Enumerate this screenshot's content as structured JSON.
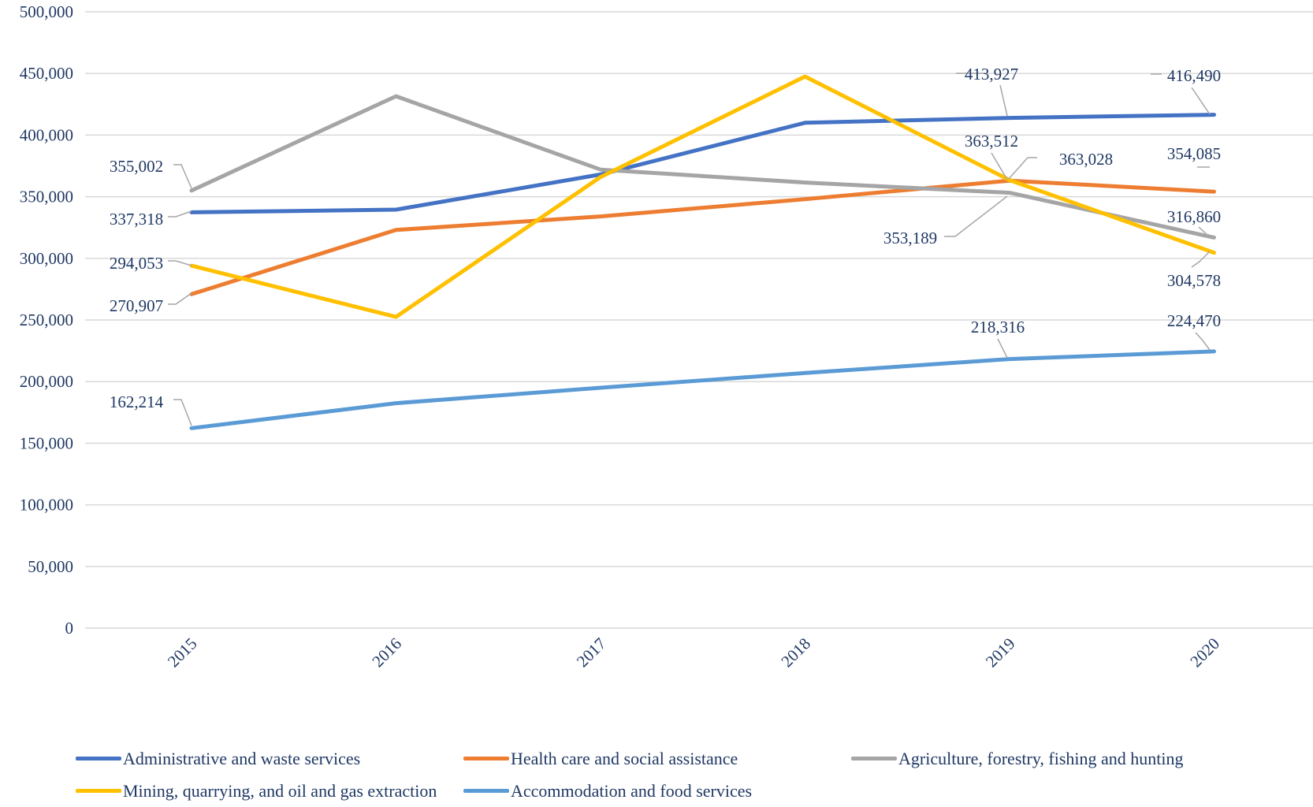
{
  "chart_data": {
    "type": "line",
    "title": "",
    "xlabel": "",
    "ylabel": "",
    "categories": [
      "2015",
      "2016",
      "2017",
      "2018",
      "2019",
      "2020"
    ],
    "ylim": [
      0,
      500000
    ],
    "yticks": [
      0,
      50000,
      100000,
      150000,
      200000,
      250000,
      300000,
      350000,
      400000,
      450000,
      500000
    ],
    "ytick_labels": [
      "0",
      "50,000",
      "100,000",
      "150,000",
      "200,000",
      "250,000",
      "300,000",
      "350,000",
      "400,000",
      "450,000",
      "500,000"
    ],
    "grid": true,
    "legend_position": "bottom",
    "series": [
      {
        "name": "Administrative and waste services",
        "color": "#4472C4",
        "values": [
          337318,
          339500,
          368000,
          410000,
          413927,
          416490
        ],
        "labels": [
          {
            "index": 0,
            "text": "337,318"
          },
          {
            "index": 4,
            "text": "413,927"
          },
          {
            "index": 5,
            "text": "416,490"
          }
        ]
      },
      {
        "name": "Health care and social assistance",
        "color": "#ED7D31",
        "values": [
          270907,
          323000,
          334000,
          348000,
          363028,
          354085
        ],
        "labels": [
          {
            "index": 0,
            "text": "270,907"
          },
          {
            "index": 4,
            "text": "363,028"
          },
          {
            "index": 5,
            "text": "354,085"
          }
        ]
      },
      {
        "name": "Agriculture, forestry, fishing and hunting",
        "color": "#A5A5A5",
        "values": [
          355002,
          431500,
          372000,
          361500,
          353189,
          316860
        ],
        "labels": [
          {
            "index": 0,
            "text": "355,002"
          },
          {
            "index": 4,
            "text": "353,189"
          },
          {
            "index": 5,
            "text": "316,860"
          }
        ]
      },
      {
        "name": "Mining, quarrying, and oil and gas extraction",
        "color": "#FFC000",
        "values": [
          294053,
          252500,
          366000,
          447500,
          363512,
          304578
        ],
        "labels": [
          {
            "index": 0,
            "text": "294,053"
          },
          {
            "index": 4,
            "text": "363,512"
          },
          {
            "index": 5,
            "text": "304,578"
          }
        ]
      },
      {
        "name": "Accommodation and food services",
        "color": "#5B9BD5",
        "values": [
          162214,
          182500,
          195000,
          207000,
          218316,
          224470
        ],
        "labels": [
          {
            "index": 0,
            "text": "162,214"
          },
          {
            "index": 4,
            "text": "218,316"
          },
          {
            "index": 5,
            "text": "224,470"
          }
        ]
      }
    ]
  },
  "legend": {
    "rows": [
      [
        {
          "label": "Administrative and waste services",
          "color": "#4472C4"
        },
        {
          "label": "Health care and social assistance",
          "color": "#ED7D31"
        },
        {
          "label": "Agriculture, forestry, fishing and hunting",
          "color": "#A5A5A5"
        }
      ],
      [
        {
          "label": "Mining, quarrying, and oil and gas extraction",
          "color": "#FFC000"
        },
        {
          "label": "Accommodation and food services",
          "color": "#5B9BD5"
        }
      ]
    ]
  },
  "colors": {
    "axis_text": "#1f3864",
    "gridline": "#d9d9d9",
    "leader_line": "#a6a6a6"
  }
}
